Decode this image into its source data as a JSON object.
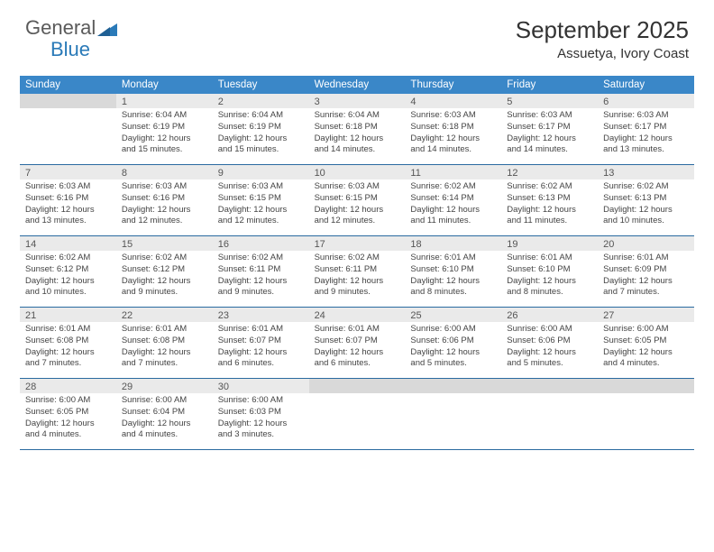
{
  "logo": {
    "word1": "General",
    "word2": "Blue"
  },
  "title": "September 2025",
  "location": "Assuetya, Ivory Coast",
  "weekday_header_bg": "#3a87c8",
  "weekdays": [
    "Sunday",
    "Monday",
    "Tuesday",
    "Wednesday",
    "Thursday",
    "Friday",
    "Saturday"
  ],
  "weeks": [
    [
      {
        "day": "",
        "sunrise": "",
        "sunset": "",
        "daylight": ""
      },
      {
        "day": "1",
        "sunrise": "Sunrise: 6:04 AM",
        "sunset": "Sunset: 6:19 PM",
        "daylight": "Daylight: 12 hours and 15 minutes."
      },
      {
        "day": "2",
        "sunrise": "Sunrise: 6:04 AM",
        "sunset": "Sunset: 6:19 PM",
        "daylight": "Daylight: 12 hours and 15 minutes."
      },
      {
        "day": "3",
        "sunrise": "Sunrise: 6:04 AM",
        "sunset": "Sunset: 6:18 PM",
        "daylight": "Daylight: 12 hours and 14 minutes."
      },
      {
        "day": "4",
        "sunrise": "Sunrise: 6:03 AM",
        "sunset": "Sunset: 6:18 PM",
        "daylight": "Daylight: 12 hours and 14 minutes."
      },
      {
        "day": "5",
        "sunrise": "Sunrise: 6:03 AM",
        "sunset": "Sunset: 6:17 PM",
        "daylight": "Daylight: 12 hours and 14 minutes."
      },
      {
        "day": "6",
        "sunrise": "Sunrise: 6:03 AM",
        "sunset": "Sunset: 6:17 PM",
        "daylight": "Daylight: 12 hours and 13 minutes."
      }
    ],
    [
      {
        "day": "7",
        "sunrise": "Sunrise: 6:03 AM",
        "sunset": "Sunset: 6:16 PM",
        "daylight": "Daylight: 12 hours and 13 minutes."
      },
      {
        "day": "8",
        "sunrise": "Sunrise: 6:03 AM",
        "sunset": "Sunset: 6:16 PM",
        "daylight": "Daylight: 12 hours and 12 minutes."
      },
      {
        "day": "9",
        "sunrise": "Sunrise: 6:03 AM",
        "sunset": "Sunset: 6:15 PM",
        "daylight": "Daylight: 12 hours and 12 minutes."
      },
      {
        "day": "10",
        "sunrise": "Sunrise: 6:03 AM",
        "sunset": "Sunset: 6:15 PM",
        "daylight": "Daylight: 12 hours and 12 minutes."
      },
      {
        "day": "11",
        "sunrise": "Sunrise: 6:02 AM",
        "sunset": "Sunset: 6:14 PM",
        "daylight": "Daylight: 12 hours and 11 minutes."
      },
      {
        "day": "12",
        "sunrise": "Sunrise: 6:02 AM",
        "sunset": "Sunset: 6:13 PM",
        "daylight": "Daylight: 12 hours and 11 minutes."
      },
      {
        "day": "13",
        "sunrise": "Sunrise: 6:02 AM",
        "sunset": "Sunset: 6:13 PM",
        "daylight": "Daylight: 12 hours and 10 minutes."
      }
    ],
    [
      {
        "day": "14",
        "sunrise": "Sunrise: 6:02 AM",
        "sunset": "Sunset: 6:12 PM",
        "daylight": "Daylight: 12 hours and 10 minutes."
      },
      {
        "day": "15",
        "sunrise": "Sunrise: 6:02 AM",
        "sunset": "Sunset: 6:12 PM",
        "daylight": "Daylight: 12 hours and 9 minutes."
      },
      {
        "day": "16",
        "sunrise": "Sunrise: 6:02 AM",
        "sunset": "Sunset: 6:11 PM",
        "daylight": "Daylight: 12 hours and 9 minutes."
      },
      {
        "day": "17",
        "sunrise": "Sunrise: 6:02 AM",
        "sunset": "Sunset: 6:11 PM",
        "daylight": "Daylight: 12 hours and 9 minutes."
      },
      {
        "day": "18",
        "sunrise": "Sunrise: 6:01 AM",
        "sunset": "Sunset: 6:10 PM",
        "daylight": "Daylight: 12 hours and 8 minutes."
      },
      {
        "day": "19",
        "sunrise": "Sunrise: 6:01 AM",
        "sunset": "Sunset: 6:10 PM",
        "daylight": "Daylight: 12 hours and 8 minutes."
      },
      {
        "day": "20",
        "sunrise": "Sunrise: 6:01 AM",
        "sunset": "Sunset: 6:09 PM",
        "daylight": "Daylight: 12 hours and 7 minutes."
      }
    ],
    [
      {
        "day": "21",
        "sunrise": "Sunrise: 6:01 AM",
        "sunset": "Sunset: 6:08 PM",
        "daylight": "Daylight: 12 hours and 7 minutes."
      },
      {
        "day": "22",
        "sunrise": "Sunrise: 6:01 AM",
        "sunset": "Sunset: 6:08 PM",
        "daylight": "Daylight: 12 hours and 7 minutes."
      },
      {
        "day": "23",
        "sunrise": "Sunrise: 6:01 AM",
        "sunset": "Sunset: 6:07 PM",
        "daylight": "Daylight: 12 hours and 6 minutes."
      },
      {
        "day": "24",
        "sunrise": "Sunrise: 6:01 AM",
        "sunset": "Sunset: 6:07 PM",
        "daylight": "Daylight: 12 hours and 6 minutes."
      },
      {
        "day": "25",
        "sunrise": "Sunrise: 6:00 AM",
        "sunset": "Sunset: 6:06 PM",
        "daylight": "Daylight: 12 hours and 5 minutes."
      },
      {
        "day": "26",
        "sunrise": "Sunrise: 6:00 AM",
        "sunset": "Sunset: 6:06 PM",
        "daylight": "Daylight: 12 hours and 5 minutes."
      },
      {
        "day": "27",
        "sunrise": "Sunrise: 6:00 AM",
        "sunset": "Sunset: 6:05 PM",
        "daylight": "Daylight: 12 hours and 4 minutes."
      }
    ],
    [
      {
        "day": "28",
        "sunrise": "Sunrise: 6:00 AM",
        "sunset": "Sunset: 6:05 PM",
        "daylight": "Daylight: 12 hours and 4 minutes."
      },
      {
        "day": "29",
        "sunrise": "Sunrise: 6:00 AM",
        "sunset": "Sunset: 6:04 PM",
        "daylight": "Daylight: 12 hours and 4 minutes."
      },
      {
        "day": "30",
        "sunrise": "Sunrise: 6:00 AM",
        "sunset": "Sunset: 6:03 PM",
        "daylight": "Daylight: 12 hours and 3 minutes."
      },
      {
        "day": "",
        "sunrise": "",
        "sunset": "",
        "daylight": ""
      },
      {
        "day": "",
        "sunrise": "",
        "sunset": "",
        "daylight": ""
      },
      {
        "day": "",
        "sunrise": "",
        "sunset": "",
        "daylight": ""
      },
      {
        "day": "",
        "sunrise": "",
        "sunset": "",
        "daylight": ""
      }
    ]
  ]
}
